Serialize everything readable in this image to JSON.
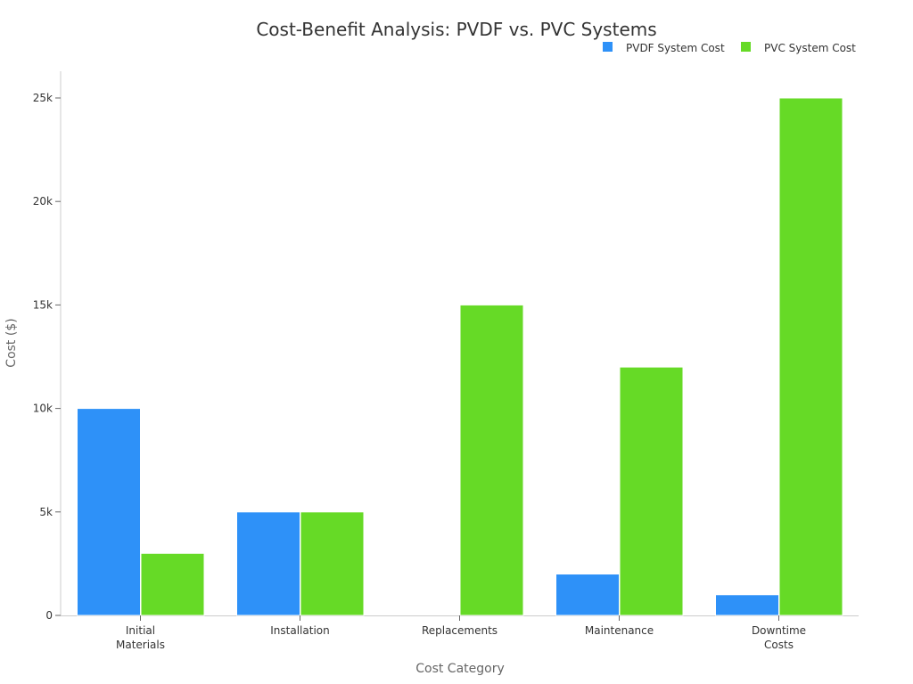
{
  "chart_data": {
    "type": "bar",
    "title": "Cost-Benefit Analysis: PVDF vs. PVC Systems",
    "xlabel": "Cost Category",
    "ylabel": "Cost ($)",
    "categories": [
      [
        "Initial",
        "Materials"
      ],
      [
        "Installation"
      ],
      [
        "Replacements"
      ],
      [
        "Maintenance"
      ],
      [
        "Downtime",
        "Costs"
      ]
    ],
    "series": [
      {
        "name": "PVDF System Cost",
        "color": "#2e91f8",
        "values": [
          10000,
          5000,
          0,
          2000,
          1000
        ]
      },
      {
        "name": "PVC System Cost",
        "color": "#66da26",
        "values": [
          3000,
          5000,
          15000,
          12000,
          25000
        ]
      }
    ],
    "ylim": [
      0,
      26300
    ],
    "yticks": [
      0,
      5000,
      10000,
      15000,
      20000,
      25000
    ],
    "ytick_labels": [
      "0",
      "5k",
      "10k",
      "15k",
      "20k",
      "25k"
    ],
    "grid": false,
    "legend_position": "top-right"
  }
}
